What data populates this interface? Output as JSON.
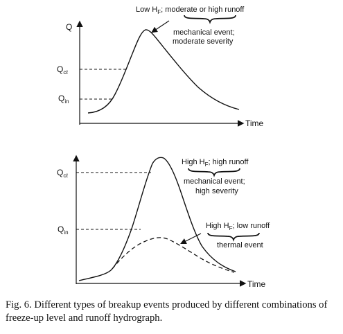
{
  "top_panel": {
    "y_axis_label": "Q",
    "x_axis_label": "Time",
    "levels": [
      {
        "main": "Q",
        "sub": "cℓ"
      },
      {
        "main": "Q",
        "sub": "in"
      }
    ],
    "annotation_title": {
      "prefix": "Low H",
      "sub": "F",
      "suffix": "; moderate or high runoff"
    },
    "annotation_lines": [
      "mechanical event;",
      "moderate severity"
    ]
  },
  "bottom_panel": {
    "x_axis_label": "Time",
    "levels": [
      {
        "main": "Q",
        "sub": "cℓ"
      },
      {
        "main": "Q",
        "sub": "in"
      }
    ],
    "annotation_high_title": {
      "prefix": "High H",
      "sub": "F",
      "suffix": "; high runoff"
    },
    "annotation_high_lines": [
      "mechanical event;",
      "high severity"
    ],
    "annotation_low_title": {
      "prefix": "High H",
      "sub": "F",
      "suffix": "; low runoff"
    },
    "annotation_low_lines": [
      "thermal event"
    ]
  },
  "caption": "Fig. 6. Different types of breakup events produced by different combinations of freeze-up level and runoff hydrograph."
}
